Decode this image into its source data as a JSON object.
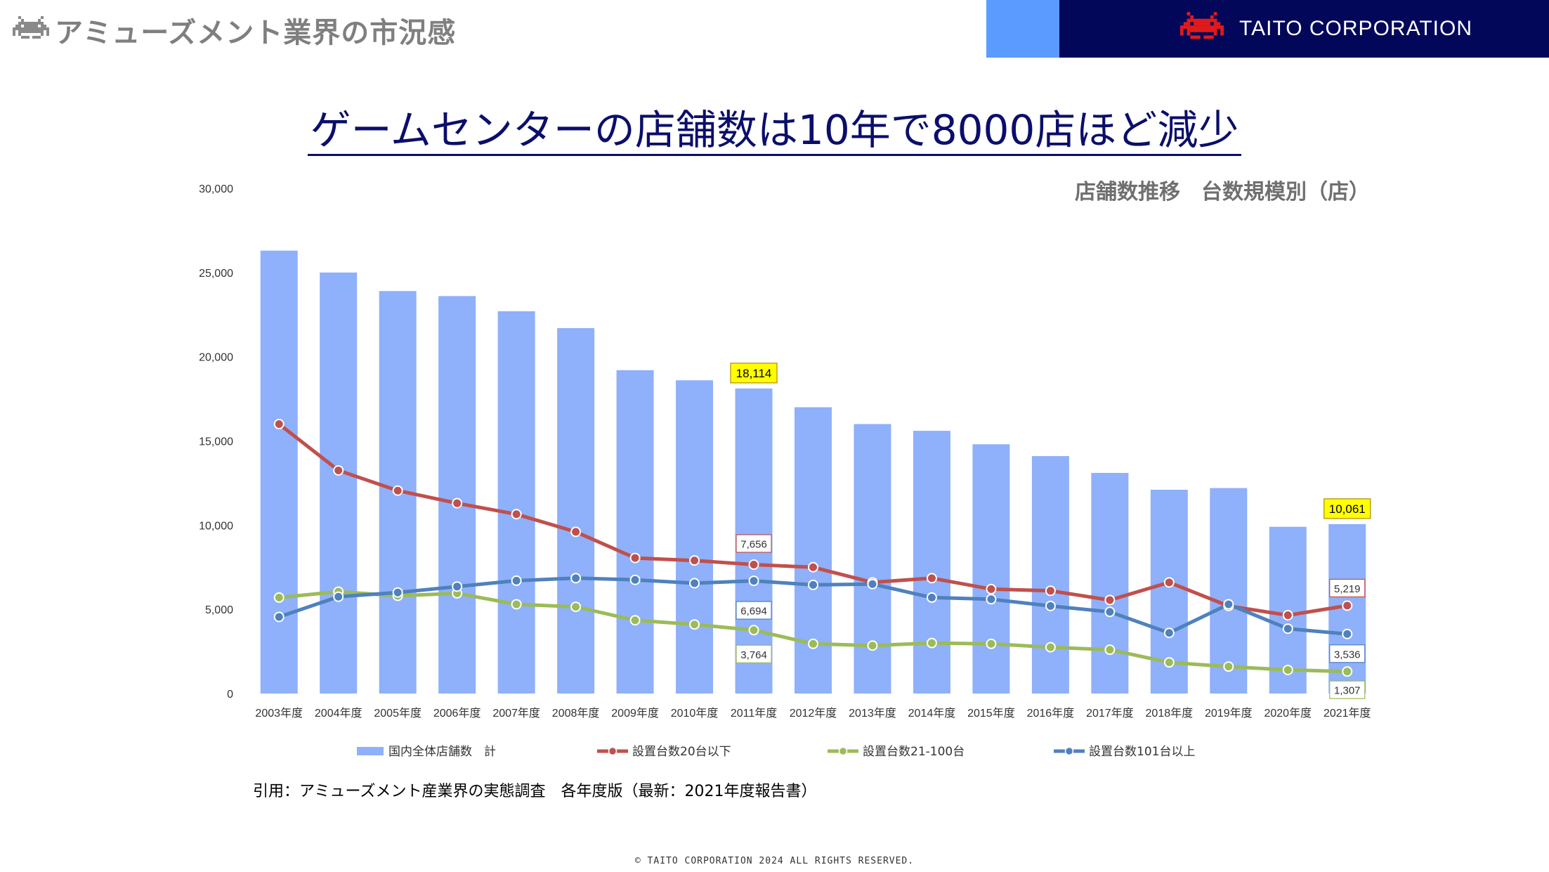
{
  "header": {
    "title": "アミューズメント業界の市況感",
    "brand": "TAITO CORPORATION"
  },
  "headline": "ゲームセンターの店舗数は10年で8000店ほど減少",
  "subtitle": "店舗数推移　台数規模別（店）",
  "source_note": "引用：アミューズメント産業界の実態調査　各年度版（最新：2021年度報告書）",
  "copyright": "© TAITO CORPORATION 2024 ALL RIGHTS RESERVED.",
  "colors": {
    "bars": "#8fb0fa",
    "series_20_or_less": "#c0504d",
    "series_21_100": "#9bbb59",
    "series_101_plus": "#4f81bd",
    "highlight_fill": "#ffff00",
    "header_dark": "#02075a",
    "header_light": "#5b9bff"
  },
  "chart_data": {
    "type": "bar+line",
    "categories": [
      "2003年度",
      "2004年度",
      "2005年度",
      "2006年度",
      "2007年度",
      "2008年度",
      "2009年度",
      "2010年度",
      "2011年度",
      "2012年度",
      "2013年度",
      "2014年度",
      "2015年度",
      "2016年度",
      "2017年度",
      "2018年度",
      "2019年度",
      "2020年度",
      "2021年度"
    ],
    "ylim": [
      0,
      30000
    ],
    "yticks": [
      "0",
      "5,000",
      "10,000",
      "15,000",
      "20,000",
      "25,000",
      "30,000"
    ],
    "grid": false,
    "legend_position": "bottom",
    "bar_series": {
      "name": "国内全体店舗数　計",
      "values": [
        26300,
        25000,
        23900,
        23600,
        22700,
        21700,
        19200,
        18600,
        18114,
        17000,
        16000,
        15600,
        14800,
        14100,
        13100,
        12100,
        12200,
        9900,
        10061
      ]
    },
    "series": [
      {
        "name": "設置台数20台以下",
        "values": [
          16000,
          13250,
          12050,
          11300,
          10650,
          9600,
          8050,
          7900,
          7656,
          7500,
          6600,
          6850,
          6200,
          6100,
          5550,
          6600,
          5200,
          4650,
          5219
        ]
      },
      {
        "name": "設置台数21-100台",
        "values": [
          5700,
          6050,
          5800,
          5950,
          5300,
          5150,
          4350,
          4100,
          3764,
          2950,
          2850,
          3000,
          2950,
          2750,
          2600,
          1850,
          1600,
          1400,
          1307
        ]
      },
      {
        "name": "設置台数101台以上",
        "values": [
          4550,
          5750,
          6000,
          6350,
          6700,
          6850,
          6750,
          6550,
          6694,
          6450,
          6500,
          5700,
          5600,
          5200,
          4850,
          3600,
          5300,
          3850,
          3536
        ]
      }
    ],
    "data_labels": [
      {
        "series": "bar",
        "index": 8,
        "text": "18,114",
        "highlight": true
      },
      {
        "series": "bar",
        "index": 18,
        "text": "10,061",
        "highlight": true
      },
      {
        "series": 0,
        "index": 8,
        "text": "7,656"
      },
      {
        "series": 2,
        "index": 8,
        "text": "6,694"
      },
      {
        "series": 1,
        "index": 8,
        "text": "3,764"
      },
      {
        "series": 0,
        "index": 18,
        "text": "5,219"
      },
      {
        "series": 2,
        "index": 18,
        "text": "3,536"
      },
      {
        "series": 1,
        "index": 18,
        "text": "1,307"
      }
    ]
  }
}
